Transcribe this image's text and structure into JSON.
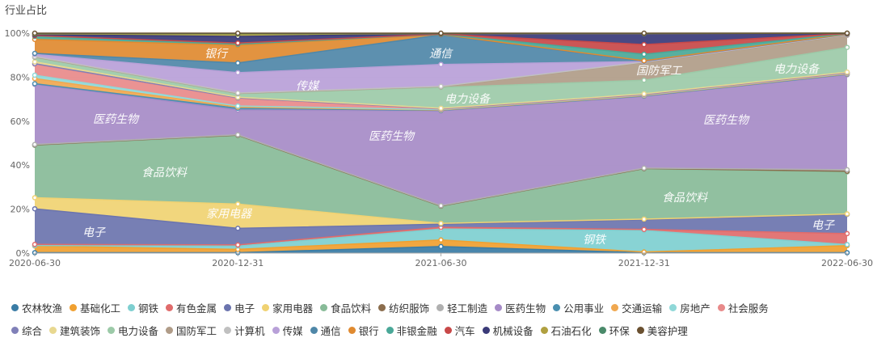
{
  "chart_data": {
    "type": "area",
    "stacked": "percent",
    "ylabel": "行业占比",
    "ylim": [
      0,
      100
    ],
    "yticks": [
      "0%",
      "20%",
      "40%",
      "60%",
      "80%",
      "100%"
    ],
    "x": [
      "2020-06-30",
      "2020-12-31",
      "2021-06-30",
      "2021-12-31",
      "2022-06-30"
    ],
    "legend_position": "bottom",
    "series": [
      {
        "name": "农林牧渔",
        "color": "#3a7ca5",
        "values": [
          0.2,
          0.2,
          3,
          0.2,
          0.2
        ]
      },
      {
        "name": "基础化工",
        "color": "#f0a030",
        "values": [
          3,
          1.5,
          3,
          0.3,
          3.2
        ]
      },
      {
        "name": "钢铁",
        "color": "#7ecfd0",
        "values": [
          0.2,
          1.5,
          5,
          10,
          0.5
        ]
      },
      {
        "name": "有色金属",
        "color": "#e06b6b",
        "values": [
          0.5,
          0.5,
          0.8,
          0.5,
          5
        ]
      },
      {
        "name": "电子",
        "color": "#6b74ae",
        "values": [
          16,
          7.5,
          1.4,
          4.5,
          8.8
        ]
      },
      {
        "name": "家用电器",
        "color": "#f0d272",
        "values": [
          5,
          11,
          0.4,
          0.3,
          0.2
        ]
      },
      {
        "name": "食品饮料",
        "color": "#88bb98",
        "values": [
          23.5,
          31,
          7.7,
          23.3,
          19.2
        ]
      },
      {
        "name": "纺织服饰",
        "color": "#8b6d4d",
        "values": [
          0.2,
          0.2,
          0.2,
          0.2,
          0.3
        ]
      },
      {
        "name": "轻工制造",
        "color": "#b0b0b0",
        "values": [
          0.2,
          0.2,
          0.2,
          0.2,
          0.7
        ]
      },
      {
        "name": "医药生物",
        "color": "#a68bc7",
        "values": [
          27,
          11.2,
          43.3,
          33.3,
          43.4
        ]
      },
      {
        "name": "公用事业",
        "color": "#4a8fb0",
        "values": [
          0.3,
          0.8,
          0.2,
          0.2,
          0.2
        ]
      },
      {
        "name": "交通运输",
        "color": "#f0a850",
        "values": [
          2.3,
          0.5,
          0.2,
          0.2,
          0.2
        ]
      },
      {
        "name": "房地产",
        "color": "#8fd8d8",
        "values": [
          1.5,
          0.5,
          0.2,
          0.2,
          0.2
        ]
      },
      {
        "name": "社会服务",
        "color": "#e88a8a",
        "values": [
          5,
          3.5,
          0.2,
          0.2,
          0.2
        ]
      },
      {
        "name": "综合",
        "color": "#8080b8",
        "values": [
          0.2,
          0.2,
          0.2,
          0.2,
          0.2
        ]
      },
      {
        "name": "建筑装饰",
        "color": "#e8d890",
        "values": [
          0.8,
          0.3,
          0.2,
          0.2,
          0.2
        ]
      },
      {
        "name": "电力设备",
        "color": "#9ccaa8",
        "values": [
          2,
          1.5,
          9.5,
          6.3,
          11.3
        ]
      },
      {
        "name": "国防军工",
        "color": "#b09c88",
        "values": [
          0.2,
          0.2,
          0.3,
          8.3,
          5.5
        ]
      },
      {
        "name": "计算机",
        "color": "#c0c0c0",
        "values": [
          0.2,
          0.2,
          0.2,
          0.2,
          0.2
        ]
      },
      {
        "name": "传媒",
        "color": "#b8a0d8",
        "values": [
          1,
          9.2,
          10,
          0.2,
          0.2
        ]
      },
      {
        "name": "通信",
        "color": "#4f87a8",
        "values": [
          0.4,
          4.4,
          13.5,
          0.2,
          0.1
        ]
      },
      {
        "name": "银行",
        "color": "#e08a30",
        "values": [
          6.3,
          8,
          0.2,
          0.2,
          0.1
        ]
      },
      {
        "name": "非银金融",
        "color": "#4aa898",
        "values": [
          1.3,
          0.5,
          0.1,
          3,
          0.1
        ]
      },
      {
        "name": "汽车",
        "color": "#c84848",
        "values": [
          0.4,
          0.5,
          0.1,
          4.5,
          0.1
        ]
      },
      {
        "name": "机械设备",
        "color": "#3a3a78",
        "values": [
          0.4,
          3,
          0.1,
          5,
          0.1
        ]
      },
      {
        "name": "石油石化",
        "color": "#b0a040",
        "values": [
          0.4,
          1,
          0.1,
          0.1,
          0.1
        ]
      },
      {
        "name": "环保",
        "color": "#4a8a6a",
        "values": [
          0.2,
          0.3,
          0.1,
          0.1,
          0
        ]
      },
      {
        "name": "美容护理",
        "color": "#6a5030",
        "values": [
          0.1,
          0.2,
          0.1,
          0.1,
          0
        ]
      }
    ],
    "annotations": [
      {
        "text": "银行"
      },
      {
        "text": "通信"
      },
      {
        "text": "传媒"
      },
      {
        "text": "国防军工"
      },
      {
        "text": "电力设备"
      },
      {
        "text": "电力设备"
      },
      {
        "text": "医药生物"
      },
      {
        "text": "医药生物"
      },
      {
        "text": "医药生物"
      },
      {
        "text": "食品饮料"
      },
      {
        "text": "食品饮料"
      },
      {
        "text": "家用电器"
      },
      {
        "text": "电子"
      },
      {
        "text": "钢铁"
      },
      {
        "text": "电子"
      }
    ]
  }
}
